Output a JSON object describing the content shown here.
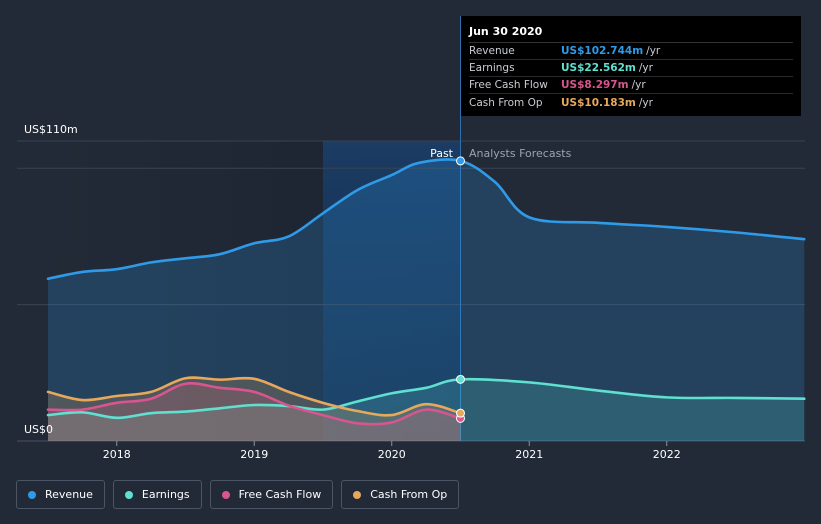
{
  "tooltip": {
    "date": "Jun 30 2020",
    "rows": [
      {
        "label": "Revenue",
        "value": "US$102.744m",
        "unit": "/yr",
        "color": "#2f9be8"
      },
      {
        "label": "Earnings",
        "value": "US$22.562m",
        "unit": "/yr",
        "color": "#5fe0d0"
      },
      {
        "label": "Free Cash Flow",
        "value": "US$8.297m",
        "unit": "/yr",
        "color": "#d8558f"
      },
      {
        "label": "Cash From Op",
        "value": "US$10.183m",
        "unit": "/yr",
        "color": "#e8a85c"
      }
    ]
  },
  "legend": [
    {
      "label": "Revenue",
      "color": "#2f9be8"
    },
    {
      "label": "Earnings",
      "color": "#5fe0d0"
    },
    {
      "label": "Free Cash Flow",
      "color": "#d8558f"
    },
    {
      "label": "Cash From Op",
      "color": "#e8a85c"
    }
  ],
  "chart_data": {
    "type": "line",
    "title": "",
    "ylabel_top": "US$110m",
    "ylabel_bottom": "US$0",
    "ylim": [
      0,
      110
    ],
    "xlim": [
      2017.5,
      2023.0
    ],
    "x_ticks": [
      2018,
      2019,
      2020,
      2021,
      2022
    ],
    "x_tick_labels": [
      "2018",
      "2019",
      "2020",
      "2021",
      "2022"
    ],
    "past_label": "Past",
    "forecast_label": "Analysts Forecasts",
    "divider_x": 2020.5,
    "highlight_from": 2019.5,
    "series": [
      {
        "name": "Revenue",
        "color": "#2f9be8",
        "fill": true,
        "x": [
          2017.5,
          2017.75,
          2018.0,
          2018.25,
          2018.5,
          2018.75,
          2019.0,
          2019.25,
          2019.5,
          2019.75,
          2020.0,
          2020.2,
          2020.5,
          2020.75,
          2021.0,
          2021.5,
          2022.0,
          2022.5,
          2023.0
        ],
        "y": [
          59.5,
          62,
          63,
          65.5,
          67,
          68.5,
          72.5,
          75,
          83.5,
          92,
          97.5,
          102,
          102.7,
          95,
          82,
          80,
          78.5,
          76.5,
          74
        ]
      },
      {
        "name": "Earnings",
        "color": "#5fe0d0",
        "fill": true,
        "x": [
          2017.5,
          2017.75,
          2018.0,
          2018.25,
          2018.5,
          2018.75,
          2019.0,
          2019.25,
          2019.5,
          2019.75,
          2020.0,
          2020.25,
          2020.5,
          2021.0,
          2021.5,
          2022.0,
          2022.5,
          2023.0
        ],
        "y": [
          9.5,
          10.5,
          8.5,
          10.2,
          10.8,
          12,
          13.2,
          12.8,
          11.5,
          14.5,
          17.5,
          19.5,
          22.6,
          21.5,
          18.5,
          16,
          15.8,
          15.5
        ]
      },
      {
        "name": "Free Cash Flow",
        "color": "#d8558f",
        "fill": true,
        "x": [
          2017.5,
          2017.75,
          2018.0,
          2018.25,
          2018.5,
          2018.75,
          2019.0,
          2019.25,
          2019.5,
          2019.75,
          2020.0,
          2020.25,
          2020.5
        ],
        "y": [
          11.5,
          11.5,
          14,
          15.5,
          21,
          19.5,
          18,
          13,
          9.5,
          6.5,
          6.8,
          11.5,
          8.3
        ]
      },
      {
        "name": "Cash From Op",
        "color": "#e8a85c",
        "fill": true,
        "x": [
          2017.5,
          2017.75,
          2018.0,
          2018.25,
          2018.5,
          2018.75,
          2019.0,
          2019.25,
          2019.5,
          2019.75,
          2020.0,
          2020.25,
          2020.5
        ],
        "y": [
          18,
          15,
          16.5,
          18,
          23,
          22.5,
          22.8,
          18,
          14,
          11,
          9.5,
          13.5,
          10.2
        ]
      }
    ]
  }
}
